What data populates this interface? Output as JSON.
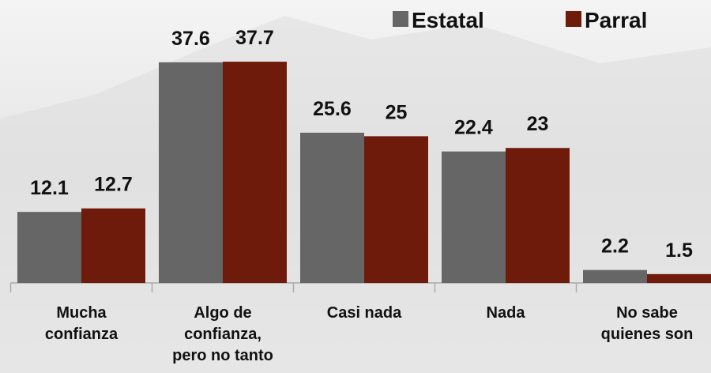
{
  "chart_data": {
    "type": "bar",
    "categories": [
      [
        "Mucha",
        "confianza"
      ],
      [
        "Algo de",
        "confianza,",
        "pero no tanto"
      ],
      [
        "Casi nada"
      ],
      [
        "Nada"
      ],
      [
        "No sabe",
        "quienes son"
      ]
    ],
    "series": [
      {
        "name": "Estatal",
        "color": "#666666",
        "values": [
          12.1,
          37.6,
          25.6,
          22.4,
          2.2
        ]
      },
      {
        "name": "Parral",
        "color": "#6e1b0c",
        "values": [
          12.7,
          37.7,
          25,
          23,
          1.5
        ]
      }
    ],
    "ylim": [
      0,
      40
    ]
  }
}
